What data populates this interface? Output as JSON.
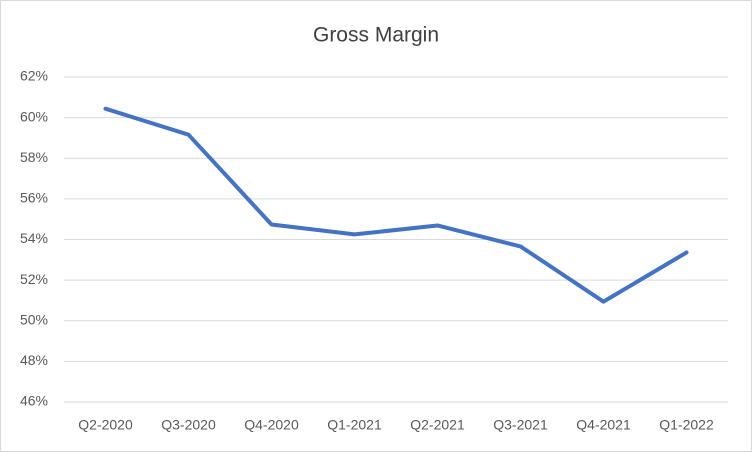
{
  "chart_data": {
    "type": "line",
    "title": "Gross Margin",
    "categories": [
      "Q2-2020",
      "Q3-2020",
      "Q4-2020",
      "Q1-2021",
      "Q2-2021",
      "Q3-2021",
      "Q4-2021",
      "Q1-2022"
    ],
    "values": [
      60.44,
      59.16,
      54.74,
      54.25,
      54.69,
      53.66,
      50.94,
      53.36
    ],
    "color": "#4472c4",
    "ylim": [
      46,
      62
    ],
    "yticks": [
      {
        "value": 46,
        "label": "46%"
      },
      {
        "value": 48,
        "label": "48%"
      },
      {
        "value": 50,
        "label": "50%"
      },
      {
        "value": 52,
        "label": "52%"
      },
      {
        "value": 54,
        "label": "54%"
      },
      {
        "value": 56,
        "label": "56%"
      },
      {
        "value": 58,
        "label": "58%"
      },
      {
        "value": 60,
        "label": "60%"
      },
      {
        "value": 62,
        "label": "62%"
      }
    ],
    "grid": true
  }
}
